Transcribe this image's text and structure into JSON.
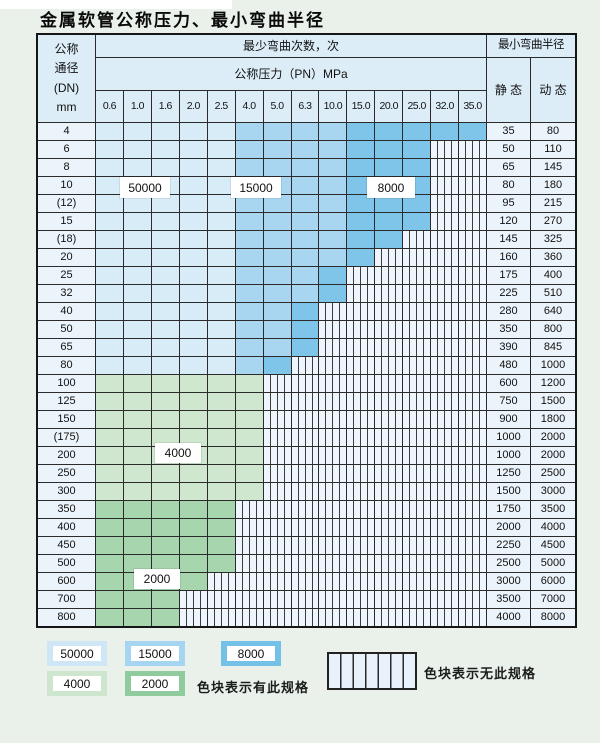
{
  "title": "金属软管公称压力、最小弯曲半径",
  "colors": {
    "blue_50000": "#d8ecf8",
    "blue_15000": "#a8d6f0",
    "blue_8000": "#7ec5e9",
    "green_4000": "#cfe7cf",
    "green_2000": "#a6d5ae",
    "grid_line": "#2b2b2b",
    "striped_bg": "#eef5fc",
    "header_bg": "#ddedf8",
    "label_cell_bg": "#ebf4fb"
  },
  "table": {
    "header": {
      "dn_lines": [
        "公称",
        "通径",
        "(DN)",
        "mm"
      ],
      "bend_cycles": "最少弯曲次数，次",
      "min_bend_radius": "最小弯曲半径",
      "pressure": "公称压力（PN）MPa",
      "static": "静 态",
      "dynamic": "动 态",
      "pressures": [
        "0.6",
        "1.0",
        "1.6",
        "2.0",
        "2.5",
        "4.0",
        "5.0",
        "6.3",
        "10.0",
        "15.0",
        "20.0",
        "25.0",
        "32.0",
        "35.0"
      ]
    },
    "rows": [
      {
        "dn": "4",
        "cells": "b1 b1 b1 b1 b1 b2 b2 b2 b2 b3 b3 b3 b3 b3",
        "static": "35",
        "dynamic": "80"
      },
      {
        "dn": "6",
        "cells": "b1 b1 b1 b1 b1 b2 b2 b2 b2 b3 b3 b3 x x",
        "static": "50",
        "dynamic": "110"
      },
      {
        "dn": "8",
        "cells": "b1 b1 b1 b1 b1 b2 b2 b2 b2 b3 b3 b3 x x",
        "static": "65",
        "dynamic": "145"
      },
      {
        "dn": "10",
        "cells": "b1 b1 b1 b1 b1 b2 b2 b2 b2 b3 b3 b3 x x",
        "static": "80",
        "dynamic": "180"
      },
      {
        "dn": "(12)",
        "cells": "b1 b1 b1 b1 b1 b2 b2 b2 b2 b3 b3 b3 x x",
        "static": "95",
        "dynamic": "215"
      },
      {
        "dn": "15",
        "cells": "b1 b1 b1 b1 b1 b2 b2 b2 b2 b3 b3 b3 x x",
        "static": "120",
        "dynamic": "270"
      },
      {
        "dn": "(18)",
        "cells": "b1 b1 b1 b1 b1 b2 b2 b2 b2 b3 b3 x x x",
        "static": "145",
        "dynamic": "325"
      },
      {
        "dn": "20",
        "cells": "b1 b1 b1 b1 b1 b2 b2 b2 b2 b3 x x x x",
        "static": "160",
        "dynamic": "360"
      },
      {
        "dn": "25",
        "cells": "b1 b1 b1 b1 b1 b2 b2 b2 b3 x x x x x",
        "static": "175",
        "dynamic": "400"
      },
      {
        "dn": "32",
        "cells": "b1 b1 b1 b1 b1 b2 b2 b2 b3 x x x x x",
        "static": "225",
        "dynamic": "510"
      },
      {
        "dn": "40",
        "cells": "b1 b1 b1 b1 b1 b2 b2 b3 x x x x x x",
        "static": "280",
        "dynamic": "640"
      },
      {
        "dn": "50",
        "cells": "b1 b1 b1 b1 b1 b2 b2 b3 x x x x x x",
        "static": "350",
        "dynamic": "800"
      },
      {
        "dn": "65",
        "cells": "b1 b1 b1 b1 b1 b2 b2 b3 x x x x x x",
        "static": "390",
        "dynamic": "845"
      },
      {
        "dn": "80",
        "cells": "b1 b1 b1 b1 b1 b2 b3 x x x x x x x",
        "static": "480",
        "dynamic": "1000"
      },
      {
        "dn": "100",
        "cells": "g1 g1 g1 g1 g1 g1 x x x x x x x x",
        "static": "600",
        "dynamic": "1200"
      },
      {
        "dn": "125",
        "cells": "g1 g1 g1 g1 g1 g1 x x x x x x x x",
        "static": "750",
        "dynamic": "1500"
      },
      {
        "dn": "150",
        "cells": "g1 g1 g1 g1 g1 g1 x x x x x x x x",
        "static": "900",
        "dynamic": "1800"
      },
      {
        "dn": "(175)",
        "cells": "g1 g1 g1 g1 g1 g1 x x x x x x x x",
        "static": "1000",
        "dynamic": "2000"
      },
      {
        "dn": "200",
        "cells": "g1 g1 g1 g1 g1 g1 x x x x x x x x",
        "static": "1000",
        "dynamic": "2000"
      },
      {
        "dn": "250",
        "cells": "g1 g1 g1 g1 g1 g1 x x x x x x x x",
        "static": "1250",
        "dynamic": "2500"
      },
      {
        "dn": "300",
        "cells": "g1 g1 g1 g1 g1 g1 x x x x x x x x",
        "static": "1500",
        "dynamic": "3000"
      },
      {
        "dn": "350",
        "cells": "g2 g2 g2 g2 g2 x x x x x x x x x",
        "static": "1750",
        "dynamic": "3500"
      },
      {
        "dn": "400",
        "cells": "g2 g2 g2 g2 g2 x x x x x x x x x",
        "static": "2000",
        "dynamic": "4000"
      },
      {
        "dn": "450",
        "cells": "g2 g2 g2 g2 g2 x x x x x x x x x",
        "static": "2250",
        "dynamic": "4500"
      },
      {
        "dn": "500",
        "cells": "g2 g2 g2 g2 g2 x x x x x x x x x",
        "static": "2500",
        "dynamic": "5000"
      },
      {
        "dn": "600",
        "cells": "g2 g2 g2 g2 x x x x x x x x x x",
        "static": "3000",
        "dynamic": "6000"
      },
      {
        "dn": "700",
        "cells": "g2 g2 g2 x x x x x x x x x x x",
        "static": "3500",
        "dynamic": "7000"
      },
      {
        "dn": "800",
        "cells": "g2 g2 g2 x x x x x x x x x x x",
        "static": "4000",
        "dynamic": "8000"
      }
    ]
  },
  "zone_labels": {
    "l50000": "50000",
    "l15000": "15000",
    "l8000": "8000",
    "l4000": "4000",
    "l2000": "2000"
  },
  "legend": {
    "swatches": [
      {
        "text": "50000",
        "color": "#cfe6f6",
        "row": 0,
        "col": 0
      },
      {
        "text": "15000",
        "color": "#a5d5f0",
        "row": 0,
        "col": 1
      },
      {
        "text": "8000",
        "color": "#74c1e7",
        "row": 0,
        "col": 2
      },
      {
        "text": "4000",
        "color": "#cde6cd",
        "row": 1,
        "col": 0
      },
      {
        "text": "2000",
        "color": "#8fcb9c",
        "row": 1,
        "col": 1
      }
    ],
    "has_spec": "色块表示有此规格",
    "no_spec": "色块表示无此规格"
  }
}
